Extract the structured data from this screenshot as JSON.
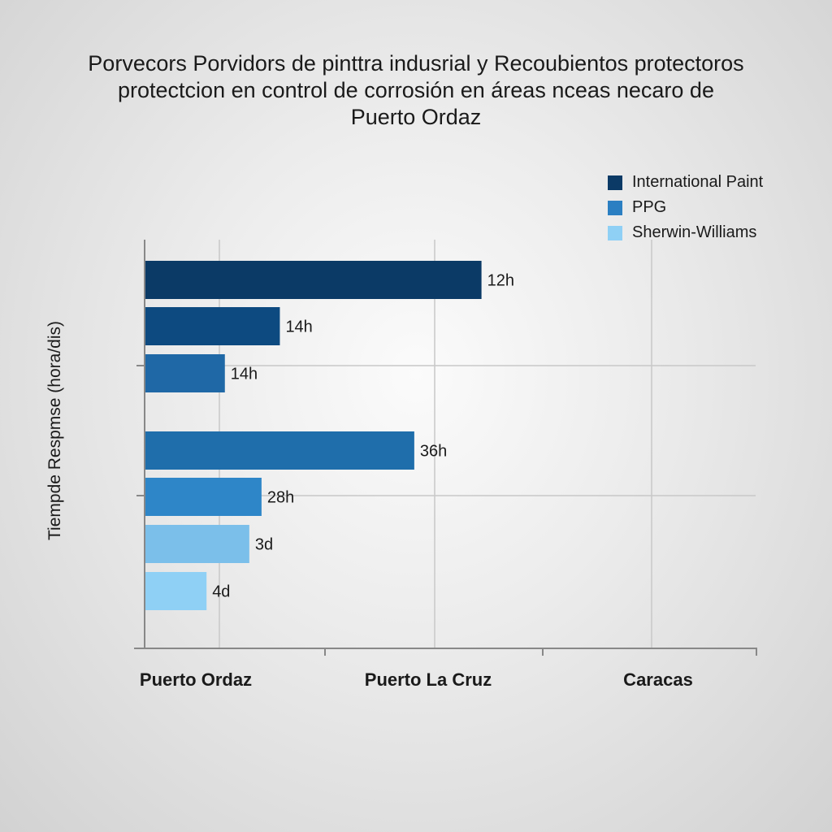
{
  "chart_data": {
    "type": "bar",
    "orientation": "horizontal",
    "title": "Porvecors Porvidors de pinttra indusrial y Recoubientos protectoros protectcion en control de corrosión en áreas nceas necaro de Puerto Ordaz",
    "title_lines": [
      "Porvecors Porvidors de pinttra indusrial y Recoubientos protectoros",
      "protectcion en control de corrosión en áreas nceas necaro de",
      "Puerto Ordaz"
    ],
    "ylabel": "Tiempde Respmse (hora/dis)",
    "xlabel": "",
    "categories": [
      "Puerto Ordaz",
      "Puerto La Cruz",
      "Caracas"
    ],
    "legend": {
      "placement": "top-right",
      "entries": [
        {
          "name": "International Paint",
          "color": "#0b3a66"
        },
        {
          "name": "PPG",
          "color": "#2b7fc2"
        },
        {
          "name": "Sherwin-Williams",
          "color": "#8fd0f5"
        }
      ]
    },
    "grid": true,
    "bars": [
      {
        "label": "12h",
        "length_fraction": 0.55,
        "color": "#0b3a66"
      },
      {
        "label": "14h",
        "length_fraction": 0.22,
        "color": "#0d4a80"
      },
      {
        "label": "14h",
        "length_fraction": 0.13,
        "color": "#1f68a6"
      },
      {
        "label": "36h",
        "length_fraction": 0.44,
        "color": "#1f6eab"
      },
      {
        "label": "28h",
        "length_fraction": 0.19,
        "color": "#2e86c8"
      },
      {
        "label": "3d",
        "length_fraction": 0.17,
        "color": "#7bbfea"
      },
      {
        "label": "4d",
        "length_fraction": 0.1,
        "color": "#8fd0f5"
      }
    ]
  }
}
